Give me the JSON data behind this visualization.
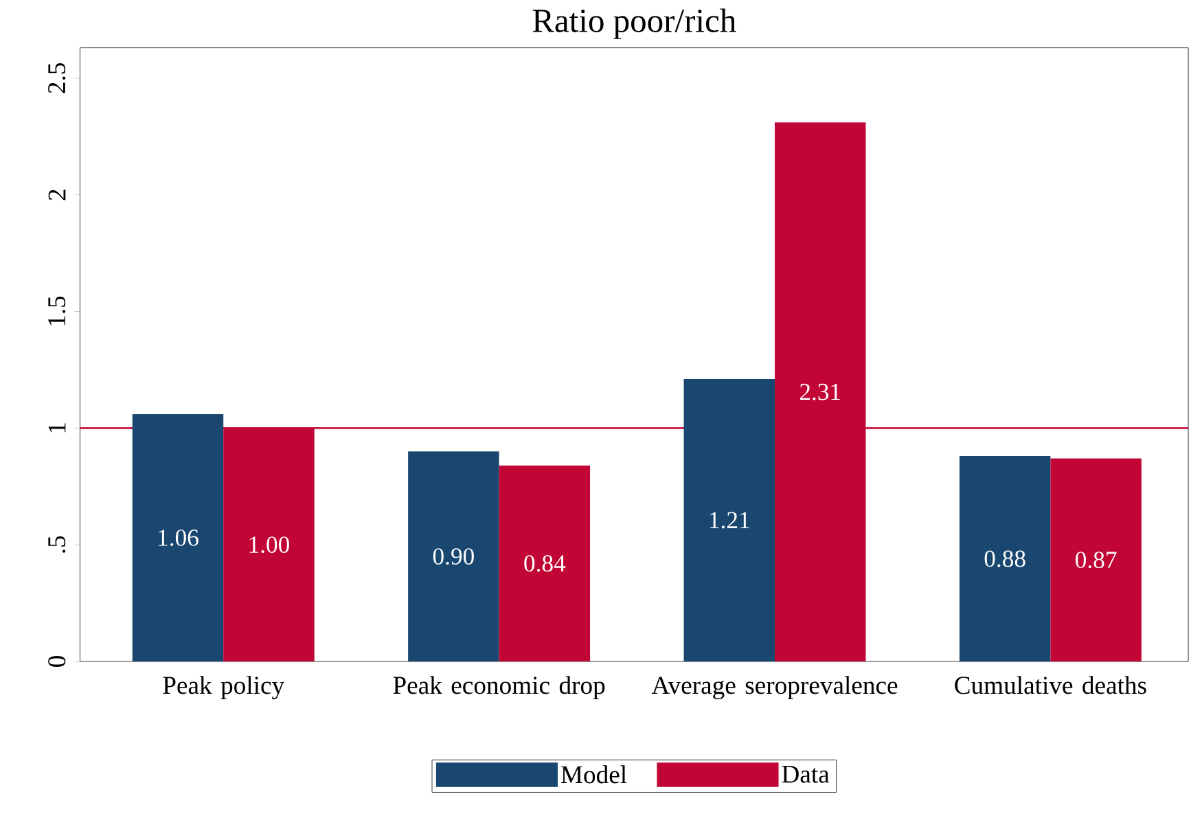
{
  "chart_data": {
    "type": "bar",
    "title": "Ratio poor/rich",
    "categories": [
      "Peak policy",
      "Peak economic drop",
      "Average seroprevalence",
      "Cumulative deaths"
    ],
    "series": [
      {
        "name": "Model",
        "color": "#1a476f",
        "values": [
          1.06,
          0.9,
          1.21,
          0.88
        ],
        "value_labels": [
          "1.06",
          "0.90",
          "1.21",
          "0.88"
        ]
      },
      {
        "name": "Data",
        "color": "#c10534",
        "values": [
          1.0,
          0.84,
          2.31,
          0.87
        ],
        "value_labels": [
          "1.00",
          "0.84",
          "2.31",
          "0.87"
        ]
      }
    ],
    "ylim": [
      0,
      2.63
    ],
    "yticks": [
      0,
      {
        "value": 0.5,
        "label": ".5"
      },
      1,
      1.5,
      2,
      2.5
    ],
    "ref_lines": [
      {
        "axis": "y",
        "value": 1,
        "color": "#c10534"
      }
    ],
    "grid": false,
    "legend": "bottom"
  }
}
